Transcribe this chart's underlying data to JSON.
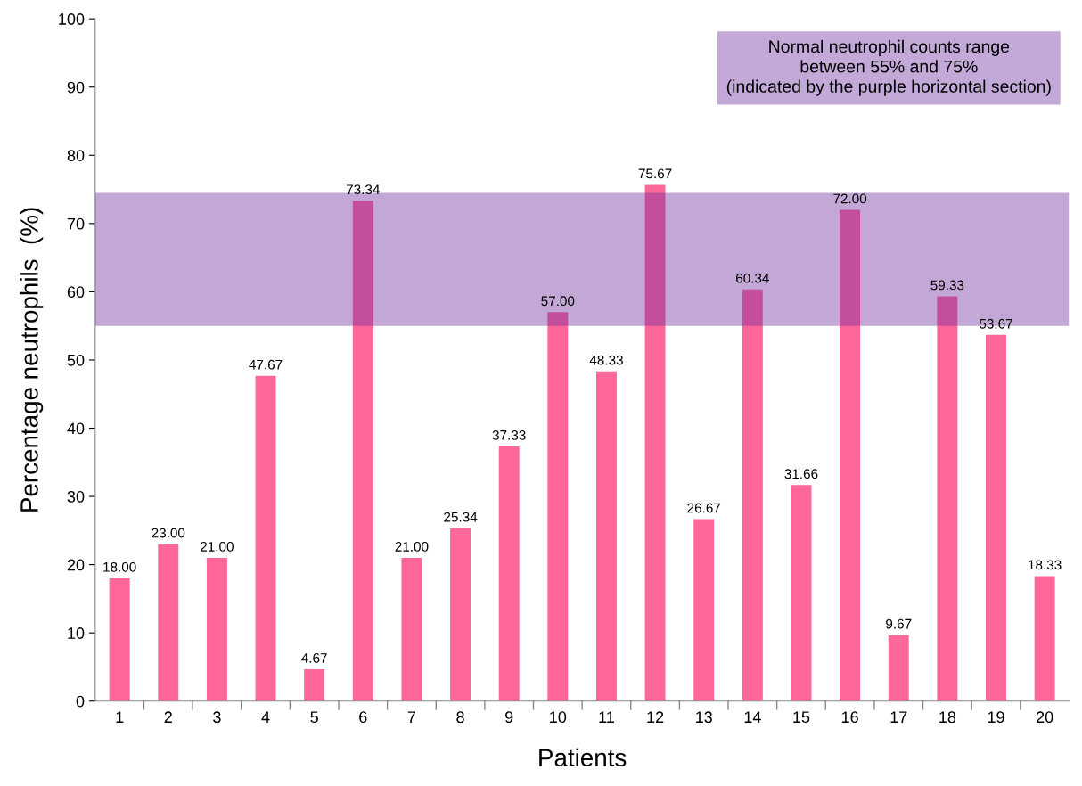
{
  "chart_data": {
    "type": "bar",
    "xlabel": "Patients",
    "ylabel": "Percentage neutrophils  (%)",
    "categories": [
      "1",
      "2",
      "3",
      "4",
      "5",
      "6",
      "7",
      "8",
      "9",
      "10",
      "11",
      "12",
      "13",
      "14",
      "15",
      "16",
      "17",
      "18",
      "19",
      "20"
    ],
    "values": [
      18.0,
      23.0,
      21.0,
      47.67,
      4.67,
      73.34,
      21.0,
      25.34,
      37.33,
      57.0,
      48.33,
      75.67,
      26.67,
      60.34,
      31.66,
      72.0,
      9.67,
      59.33,
      53.67,
      18.33
    ],
    "value_labels": [
      "18.00",
      "23.00",
      "21.00",
      "47.67",
      "4.67",
      "73.34",
      "21.00",
      "25.34",
      "37.33",
      "57.00",
      "48.33",
      "75.67",
      "26.67",
      "60.34",
      "31.66",
      "72.00",
      "9.67",
      "59.33",
      "53.67",
      "18.33"
    ],
    "color": "#ff6699",
    "ylim": [
      0,
      100
    ],
    "yticks": [
      0,
      10,
      20,
      30,
      40,
      50,
      60,
      70,
      80,
      90,
      100
    ],
    "bands": [
      {
        "axis": "y",
        "from": 55,
        "to": 74.5,
        "color": "#7030a0"
      }
    ],
    "annotations": [
      "Normal neutrophil counts range\nbetween 55% and 75%\n(indicated by the purple horizontal section)"
    ],
    "grid": false
  }
}
